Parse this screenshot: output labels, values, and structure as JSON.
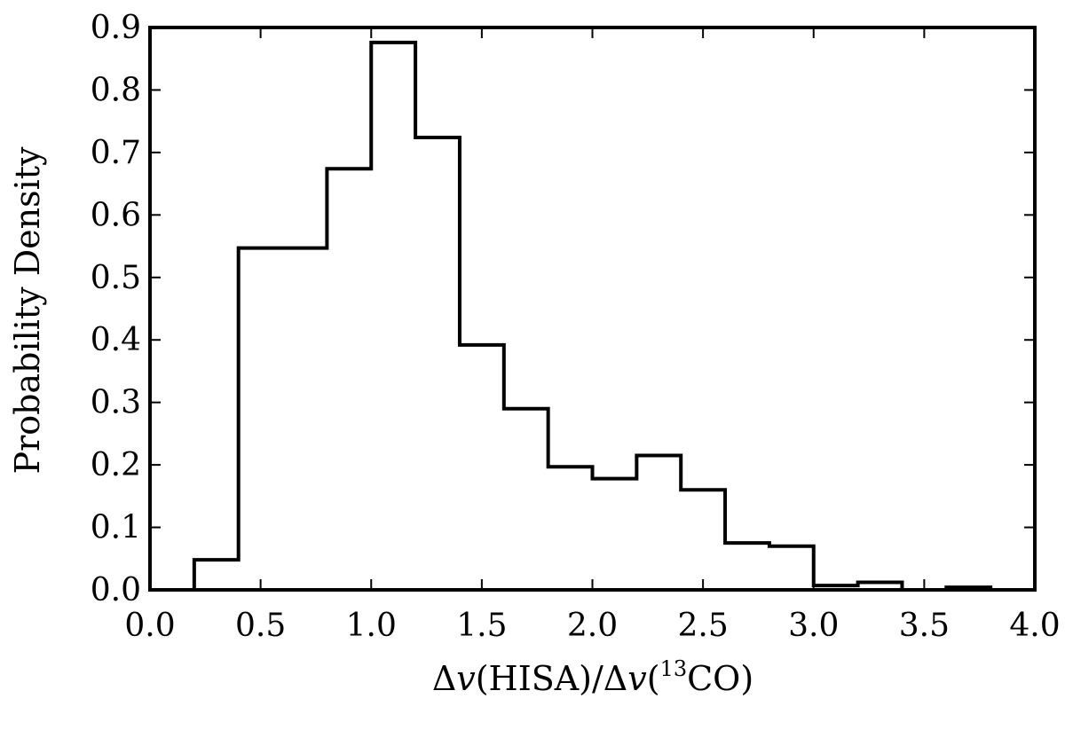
{
  "chart_data": {
    "type": "bar",
    "subtype": "step-histogram",
    "bin_edges": [
      0.2,
      0.4,
      0.6,
      0.8,
      1.0,
      1.2,
      1.4,
      1.6,
      1.8,
      2.0,
      2.2,
      2.4,
      2.6,
      2.8,
      3.0,
      3.2,
      3.4,
      3.6,
      3.8
    ],
    "values": [
      0.048,
      0.547,
      0.547,
      0.674,
      0.876,
      0.724,
      0.392,
      0.29,
      0.197,
      0.178,
      0.215,
      0.16,
      0.075,
      0.07,
      0.007,
      0.012,
      0.0,
      0.004
    ],
    "xlabel": {
      "prefix": "Δ",
      "v": "v",
      "mid": "(HISA)/Δ",
      "v2": "v",
      "open": "(",
      "sup": "13",
      "rest": "CO)"
    },
    "ylabel": "Probability Density",
    "xlim": [
      0.0,
      4.0
    ],
    "ylim": [
      0.0,
      0.9
    ],
    "xticks": [
      "0.0",
      "0.5",
      "1.0",
      "1.5",
      "2.0",
      "2.5",
      "3.0",
      "3.5",
      "4.0"
    ],
    "yticks": [
      "0.0",
      "0.1",
      "0.2",
      "0.3",
      "0.4",
      "0.5",
      "0.6",
      "0.7",
      "0.8",
      "0.9"
    ],
    "grid": false,
    "line_color": "#000000"
  }
}
